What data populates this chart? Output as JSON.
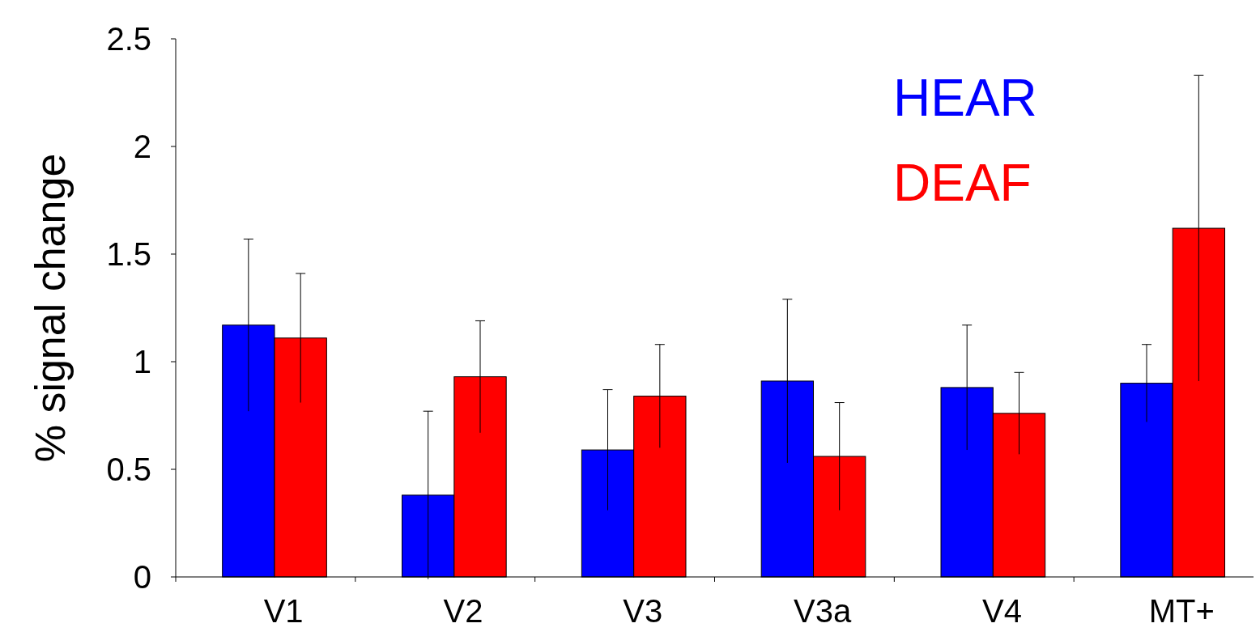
{
  "chart_data": {
    "type": "bar",
    "ylabel": "% signal change",
    "categories": [
      "V1",
      "V2",
      "V3",
      "V3a",
      "V4",
      "MT+"
    ],
    "series": [
      {
        "name": "HEAR",
        "color": "#0000ff",
        "values": [
          1.17,
          0.38,
          0.59,
          0.91,
          0.88,
          0.9
        ],
        "errors": [
          0.4,
          0.39,
          0.28,
          0.38,
          0.29,
          0.18
        ]
      },
      {
        "name": "DEAF",
        "color": "#ff0000",
        "values": [
          1.11,
          0.93,
          0.84,
          0.56,
          0.76,
          1.62
        ],
        "errors": [
          0.3,
          0.26,
          0.24,
          0.25,
          0.19,
          0.71
        ]
      }
    ],
    "ylim": [
      0,
      2.5
    ],
    "yticks": [
      0,
      0.5,
      1,
      1.5,
      2,
      2.5
    ],
    "legend": "top right",
    "grid": false
  }
}
